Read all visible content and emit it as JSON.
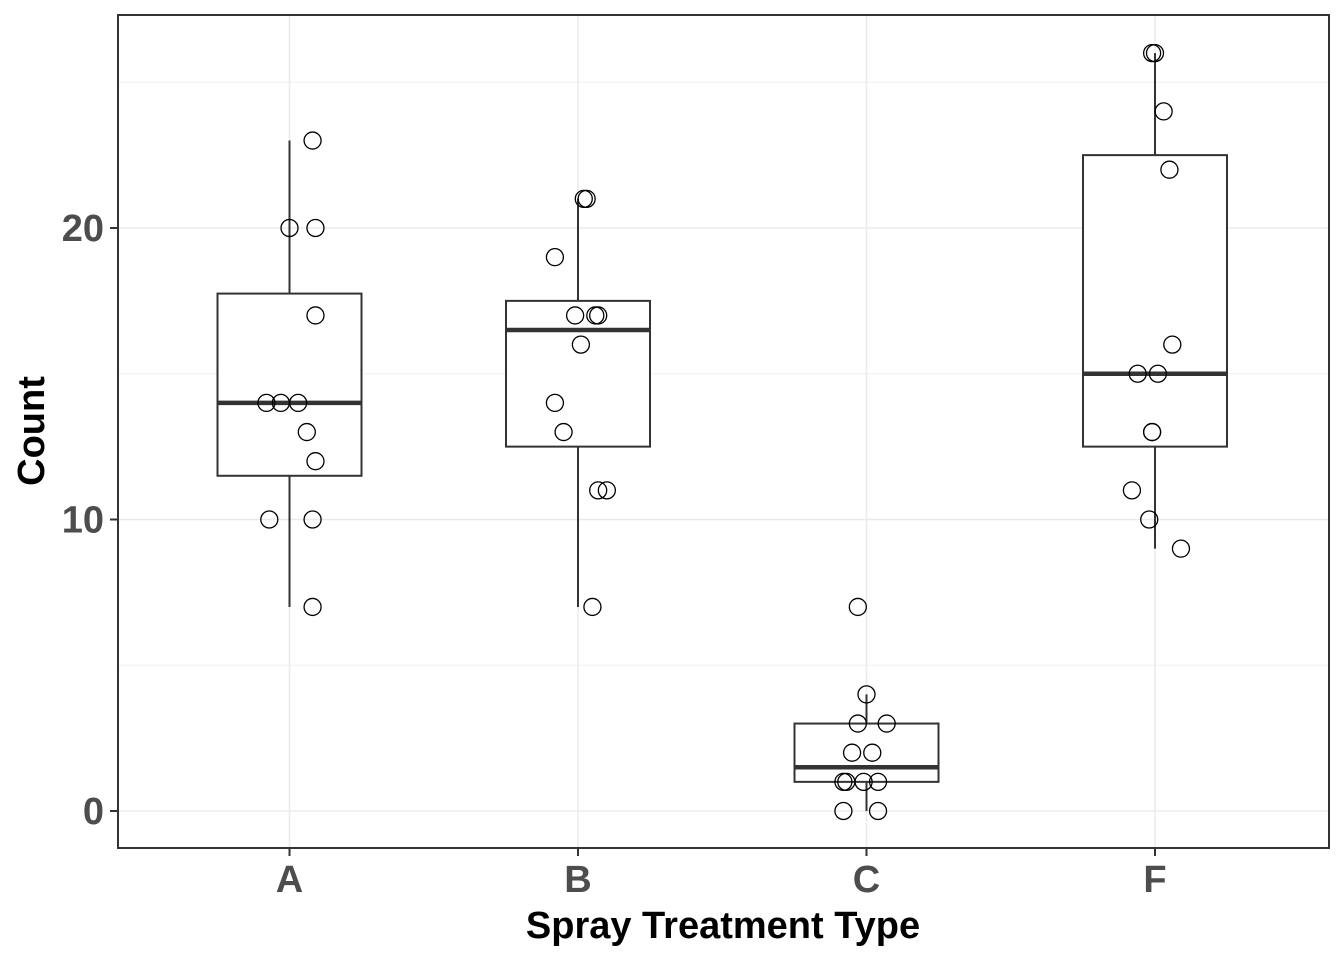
{
  "chart_data": {
    "type": "boxplot",
    "title": "",
    "xlabel": "Spray Treatment Type",
    "ylabel": "Count",
    "categories": [
      "A",
      "B",
      "C",
      "F"
    ],
    "ylim": [
      -1.25,
      27.3
    ],
    "y_ticks": [
      0,
      10,
      20
    ],
    "y_minor_ticks": [
      5,
      15,
      25
    ],
    "grid": true,
    "legend": "none",
    "boxes": [
      {
        "category": "A",
        "whisker_low": 7,
        "q1": 11.5,
        "median": 14,
        "q3": 17.75,
        "whisker_high": 23
      },
      {
        "category": "B",
        "whisker_low": 7,
        "q1": 12.5,
        "median": 16.5,
        "q3": 17.5,
        "whisker_high": 21
      },
      {
        "category": "C",
        "whisker_low": 0,
        "q1": 1,
        "median": 1.5,
        "q3": 3,
        "whisker_high": 4,
        "outliers": [
          7
        ]
      },
      {
        "category": "F",
        "whisker_low": 9,
        "q1": 12.5,
        "median": 15,
        "q3": 22.5,
        "whisker_high": 26
      }
    ],
    "points": [
      {
        "category": "A",
        "values": [
          10,
          7,
          20,
          14,
          14,
          12,
          10,
          23,
          17,
          20,
          14,
          13
        ],
        "jitter": [
          -0.07,
          0.08,
          0.0,
          -0.08,
          -0.03,
          0.09,
          0.08,
          0.08,
          0.09,
          0.09,
          0.03,
          0.06
        ]
      },
      {
        "category": "B",
        "values": [
          11,
          17,
          21,
          11,
          16,
          14,
          17,
          17,
          19,
          21,
          7,
          13
        ],
        "jitter": [
          0.1,
          0.06,
          0.02,
          0.07,
          0.01,
          -0.08,
          -0.01,
          0.07,
          -0.08,
          0.03,
          0.05,
          -0.05
        ]
      },
      {
        "category": "C",
        "values": [
          0,
          1,
          7,
          2,
          3,
          1,
          2,
          1,
          3,
          0,
          1,
          4
        ],
        "jitter": [
          -0.08,
          -0.07,
          -0.03,
          -0.05,
          -0.03,
          -0.08,
          0.02,
          -0.01,
          0.07,
          0.04,
          0.04,
          0.0
        ]
      },
      {
        "category": "F",
        "values": [
          11,
          9,
          15,
          22,
          15,
          16,
          13,
          10,
          26,
          26,
          24,
          13
        ],
        "jitter": [
          -0.08,
          0.09,
          -0.06,
          0.05,
          0.01,
          0.06,
          -0.01,
          -0.02,
          0.0,
          -0.01,
          0.03,
          -0.01
        ]
      }
    ]
  }
}
